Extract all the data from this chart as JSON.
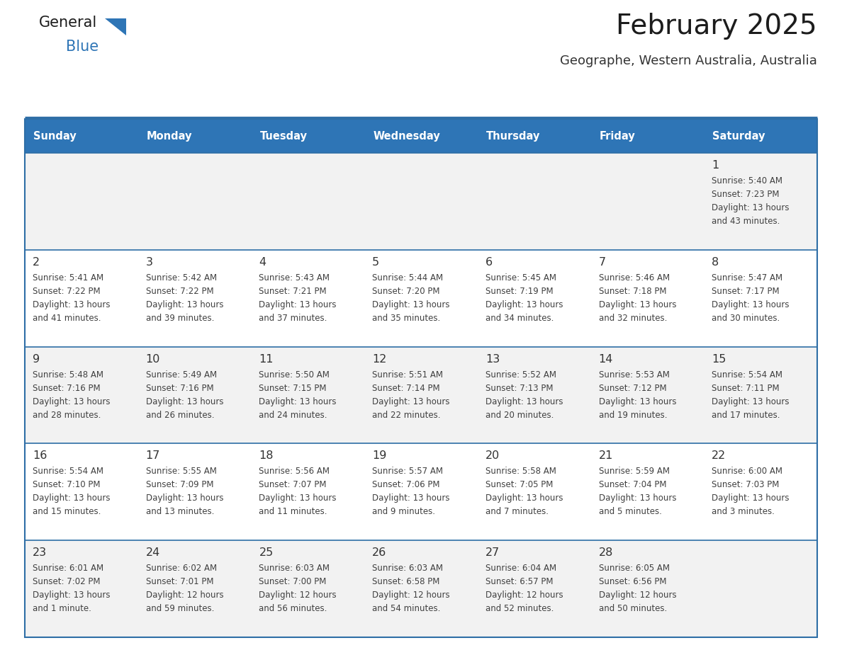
{
  "title": "February 2025",
  "subtitle": "Geographe, Western Australia, Australia",
  "days_of_week": [
    "Sunday",
    "Monday",
    "Tuesday",
    "Wednesday",
    "Thursday",
    "Friday",
    "Saturday"
  ],
  "header_bg": "#2E75B6",
  "header_text": "#FFFFFF",
  "row_bg_light": "#F2F2F2",
  "row_bg_white": "#FFFFFF",
  "border_color": "#2E6EA6",
  "cell_border_color": "#2E6EA6",
  "text_color": "#404040",
  "day_num_color": "#333333",
  "title_color": "#1a1a1a",
  "subtitle_color": "#333333",
  "calendar_data": [
    [
      null,
      null,
      null,
      null,
      null,
      null,
      {
        "day": "1",
        "sunrise": "5:40 AM",
        "sunset": "7:23 PM",
        "daylight_line1": "Daylight: 13 hours",
        "daylight_line2": "and 43 minutes."
      }
    ],
    [
      {
        "day": "2",
        "sunrise": "5:41 AM",
        "sunset": "7:22 PM",
        "daylight_line1": "Daylight: 13 hours",
        "daylight_line2": "and 41 minutes."
      },
      {
        "day": "3",
        "sunrise": "5:42 AM",
        "sunset": "7:22 PM",
        "daylight_line1": "Daylight: 13 hours",
        "daylight_line2": "and 39 minutes."
      },
      {
        "day": "4",
        "sunrise": "5:43 AM",
        "sunset": "7:21 PM",
        "daylight_line1": "Daylight: 13 hours",
        "daylight_line2": "and 37 minutes."
      },
      {
        "day": "5",
        "sunrise": "5:44 AM",
        "sunset": "7:20 PM",
        "daylight_line1": "Daylight: 13 hours",
        "daylight_line2": "and 35 minutes."
      },
      {
        "day": "6",
        "sunrise": "5:45 AM",
        "sunset": "7:19 PM",
        "daylight_line1": "Daylight: 13 hours",
        "daylight_line2": "and 34 minutes."
      },
      {
        "day": "7",
        "sunrise": "5:46 AM",
        "sunset": "7:18 PM",
        "daylight_line1": "Daylight: 13 hours",
        "daylight_line2": "and 32 minutes."
      },
      {
        "day": "8",
        "sunrise": "5:47 AM",
        "sunset": "7:17 PM",
        "daylight_line1": "Daylight: 13 hours",
        "daylight_line2": "and 30 minutes."
      }
    ],
    [
      {
        "day": "9",
        "sunrise": "5:48 AM",
        "sunset": "7:16 PM",
        "daylight_line1": "Daylight: 13 hours",
        "daylight_line2": "and 28 minutes."
      },
      {
        "day": "10",
        "sunrise": "5:49 AM",
        "sunset": "7:16 PM",
        "daylight_line1": "Daylight: 13 hours",
        "daylight_line2": "and 26 minutes."
      },
      {
        "day": "11",
        "sunrise": "5:50 AM",
        "sunset": "7:15 PM",
        "daylight_line1": "Daylight: 13 hours",
        "daylight_line2": "and 24 minutes."
      },
      {
        "day": "12",
        "sunrise": "5:51 AM",
        "sunset": "7:14 PM",
        "daylight_line1": "Daylight: 13 hours",
        "daylight_line2": "and 22 minutes."
      },
      {
        "day": "13",
        "sunrise": "5:52 AM",
        "sunset": "7:13 PM",
        "daylight_line1": "Daylight: 13 hours",
        "daylight_line2": "and 20 minutes."
      },
      {
        "day": "14",
        "sunrise": "5:53 AM",
        "sunset": "7:12 PM",
        "daylight_line1": "Daylight: 13 hours",
        "daylight_line2": "and 19 minutes."
      },
      {
        "day": "15",
        "sunrise": "5:54 AM",
        "sunset": "7:11 PM",
        "daylight_line1": "Daylight: 13 hours",
        "daylight_line2": "and 17 minutes."
      }
    ],
    [
      {
        "day": "16",
        "sunrise": "5:54 AM",
        "sunset": "7:10 PM",
        "daylight_line1": "Daylight: 13 hours",
        "daylight_line2": "and 15 minutes."
      },
      {
        "day": "17",
        "sunrise": "5:55 AM",
        "sunset": "7:09 PM",
        "daylight_line1": "Daylight: 13 hours",
        "daylight_line2": "and 13 minutes."
      },
      {
        "day": "18",
        "sunrise": "5:56 AM",
        "sunset": "7:07 PM",
        "daylight_line1": "Daylight: 13 hours",
        "daylight_line2": "and 11 minutes."
      },
      {
        "day": "19",
        "sunrise": "5:57 AM",
        "sunset": "7:06 PM",
        "daylight_line1": "Daylight: 13 hours",
        "daylight_line2": "and 9 minutes."
      },
      {
        "day": "20",
        "sunrise": "5:58 AM",
        "sunset": "7:05 PM",
        "daylight_line1": "Daylight: 13 hours",
        "daylight_line2": "and 7 minutes."
      },
      {
        "day": "21",
        "sunrise": "5:59 AM",
        "sunset": "7:04 PM",
        "daylight_line1": "Daylight: 13 hours",
        "daylight_line2": "and 5 minutes."
      },
      {
        "day": "22",
        "sunrise": "6:00 AM",
        "sunset": "7:03 PM",
        "daylight_line1": "Daylight: 13 hours",
        "daylight_line2": "and 3 minutes."
      }
    ],
    [
      {
        "day": "23",
        "sunrise": "6:01 AM",
        "sunset": "7:02 PM",
        "daylight_line1": "Daylight: 13 hours",
        "daylight_line2": "and 1 minute."
      },
      {
        "day": "24",
        "sunrise": "6:02 AM",
        "sunset": "7:01 PM",
        "daylight_line1": "Daylight: 12 hours",
        "daylight_line2": "and 59 minutes."
      },
      {
        "day": "25",
        "sunrise": "6:03 AM",
        "sunset": "7:00 PM",
        "daylight_line1": "Daylight: 12 hours",
        "daylight_line2": "and 56 minutes."
      },
      {
        "day": "26",
        "sunrise": "6:03 AM",
        "sunset": "6:58 PM",
        "daylight_line1": "Daylight: 12 hours",
        "daylight_line2": "and 54 minutes."
      },
      {
        "day": "27",
        "sunrise": "6:04 AM",
        "sunset": "6:57 PM",
        "daylight_line1": "Daylight: 12 hours",
        "daylight_line2": "and 52 minutes."
      },
      {
        "day": "28",
        "sunrise": "6:05 AM",
        "sunset": "6:56 PM",
        "daylight_line1": "Daylight: 12 hours",
        "daylight_line2": "and 50 minutes."
      },
      null
    ]
  ],
  "figsize": [
    11.88,
    9.18
  ],
  "dpi": 100
}
